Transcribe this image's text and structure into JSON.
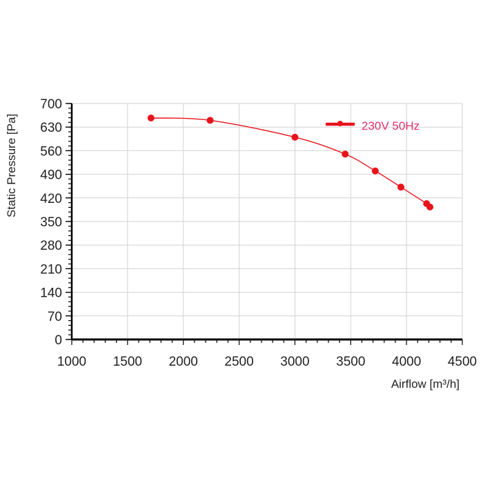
{
  "chart_data": {
    "type": "line",
    "title": "",
    "xlabel": "Airflow [m³/h]",
    "ylabel": "Static Pressure [Pa]",
    "xlim": [
      1000,
      4500
    ],
    "ylim": [
      0,
      700
    ],
    "xticks": [
      "1000",
      "1500",
      "2000",
      "2500",
      "3000",
      "3500",
      "4000",
      "4500"
    ],
    "yticks": [
      "0",
      "70",
      "140",
      "210",
      "280",
      "350",
      "420",
      "490",
      "560",
      "630",
      "700"
    ],
    "grid": true,
    "legend_position": "top-right",
    "series": [
      {
        "name": "230V 50Hz",
        "color": "#e8141b",
        "label_color": "#e0306e",
        "x": [
          1710,
          2240,
          3000,
          3450,
          3720,
          3950,
          4180,
          4210
        ],
        "y": [
          657,
          650,
          600,
          550,
          500,
          452,
          403,
          393
        ]
      }
    ]
  }
}
